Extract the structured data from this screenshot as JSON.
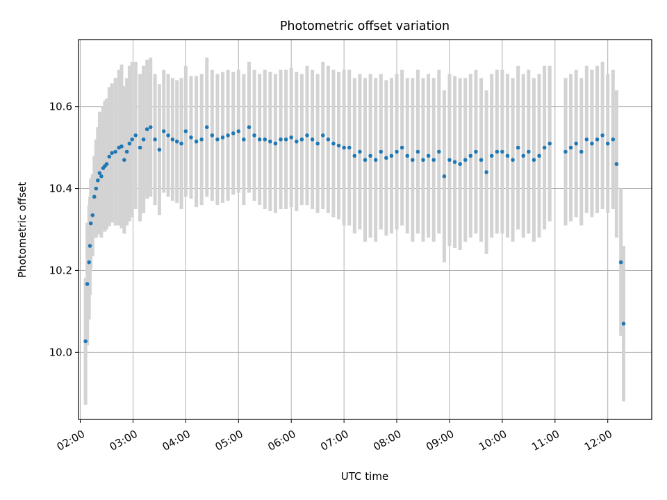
{
  "chart_data": {
    "type": "scatter",
    "title": "Photometric offset variation",
    "xlabel": "UTC time",
    "ylabel": "Photometric offset",
    "xlim": [
      "01:58",
      "12:50"
    ],
    "ylim": [
      9.836,
      10.764
    ],
    "x_ticks": [
      "02:00",
      "03:00",
      "04:00",
      "05:00",
      "06:00",
      "07:00",
      "08:00",
      "09:00",
      "10:00",
      "11:00",
      "12:00"
    ],
    "y_ticks": [
      "10.0",
      "10.2",
      "10.4",
      "10.6"
    ],
    "grid": true,
    "legend": "none",
    "colors": {
      "marker": "#1f77b4",
      "errorbar": "#d3d3d3",
      "grid": "#b0b0b0"
    },
    "series": [
      {
        "x": [
          "02:06",
          "02:08",
          "02:10",
          "02:11",
          "02:12",
          "02:14",
          "02:16",
          "02:18",
          "02:20",
          "02:22",
          "02:24",
          "02:26",
          "02:28",
          "02:30",
          "02:33",
          "02:36",
          "02:40",
          "02:44",
          "02:47",
          "02:50",
          "02:53",
          "02:56",
          "02:59",
          "03:03",
          "03:08",
          "03:12",
          "03:16",
          "03:20",
          "03:25",
          "03:30",
          "03:35",
          "03:40",
          "03:45",
          "03:50",
          "03:55",
          "04:00",
          "04:06",
          "04:12",
          "04:18",
          "04:24",
          "04:30",
          "04:36",
          "04:42",
          "04:48",
          "04:54",
          "05:00",
          "05:06",
          "05:12",
          "05:18",
          "05:24",
          "05:30",
          "05:36",
          "05:42",
          "05:48",
          "05:54",
          "06:00",
          "06:06",
          "06:12",
          "06:18",
          "06:24",
          "06:30",
          "06:36",
          "06:42",
          "06:48",
          "06:54",
          "07:00",
          "07:06",
          "07:12",
          "07:18",
          "07:24",
          "07:30",
          "07:36",
          "07:42",
          "07:48",
          "07:54",
          "08:00",
          "08:06",
          "08:12",
          "08:18",
          "08:24",
          "08:30",
          "08:36",
          "08:42",
          "08:48",
          "08:54",
          "09:00",
          "09:06",
          "09:12",
          "09:18",
          "09:24",
          "09:30",
          "09:36",
          "09:42",
          "09:48",
          "09:54",
          "10:00",
          "10:06",
          "10:12",
          "10:18",
          "10:24",
          "10:30",
          "10:36",
          "10:42",
          "10:48",
          "10:54",
          "11:12",
          "11:18",
          "11:24",
          "11:30",
          "11:36",
          "11:42",
          "11:48",
          "11:54",
          "12:00",
          "12:06",
          "12:10",
          "12:15",
          "12:18"
        ],
        "y": [
          10.027,
          10.167,
          10.22,
          10.26,
          10.315,
          10.335,
          10.38,
          10.4,
          10.42,
          10.438,
          10.43,
          10.45,
          10.455,
          10.46,
          10.478,
          10.487,
          10.49,
          10.5,
          10.503,
          10.47,
          10.49,
          10.51,
          10.52,
          10.53,
          10.5,
          10.52,
          10.545,
          10.55,
          10.52,
          10.495,
          10.54,
          10.53,
          10.52,
          10.515,
          10.51,
          10.54,
          10.525,
          10.515,
          10.52,
          10.55,
          10.53,
          10.52,
          10.525,
          10.53,
          10.535,
          10.54,
          10.52,
          10.55,
          10.53,
          10.52,
          10.52,
          10.515,
          10.51,
          10.52,
          10.52,
          10.525,
          10.515,
          10.52,
          10.53,
          10.52,
          10.51,
          10.53,
          10.52,
          10.51,
          10.505,
          10.5,
          10.5,
          10.48,
          10.49,
          10.47,
          10.48,
          10.47,
          10.49,
          10.475,
          10.48,
          10.49,
          10.5,
          10.48,
          10.47,
          10.49,
          10.47,
          10.48,
          10.47,
          10.49,
          10.43,
          10.47,
          10.465,
          10.46,
          10.47,
          10.48,
          10.49,
          10.47,
          10.44,
          10.48,
          10.49,
          10.49,
          10.48,
          10.47,
          10.5,
          10.48,
          10.49,
          10.47,
          10.48,
          10.5,
          10.51,
          10.49,
          10.5,
          10.51,
          10.49,
          10.52,
          10.51,
          10.52,
          10.53,
          10.51,
          10.52,
          10.46,
          10.22,
          10.07
        ],
        "yerr": [
          0.155,
          0.15,
          0.14,
          0.12,
          0.11,
          0.1,
          0.1,
          0.12,
          0.13,
          0.15,
          0.15,
          0.15,
          0.16,
          0.16,
          0.17,
          0.17,
          0.18,
          0.19,
          0.2,
          0.18,
          0.18,
          0.19,
          0.19,
          0.18,
          0.18,
          0.18,
          0.17,
          0.17,
          0.16,
          0.16,
          0.15,
          0.15,
          0.15,
          0.15,
          0.16,
          0.16,
          0.15,
          0.16,
          0.16,
          0.17,
          0.16,
          0.16,
          0.16,
          0.16,
          0.15,
          0.15,
          0.16,
          0.16,
          0.16,
          0.16,
          0.17,
          0.17,
          0.17,
          0.17,
          0.17,
          0.17,
          0.17,
          0.16,
          0.17,
          0.17,
          0.17,
          0.18,
          0.18,
          0.18,
          0.18,
          0.19,
          0.19,
          0.19,
          0.19,
          0.2,
          0.2,
          0.2,
          0.19,
          0.19,
          0.19,
          0.19,
          0.19,
          0.19,
          0.2,
          0.2,
          0.2,
          0.2,
          0.2,
          0.2,
          0.21,
          0.21,
          0.21,
          0.21,
          0.2,
          0.2,
          0.2,
          0.2,
          0.2,
          0.2,
          0.2,
          0.2,
          0.2,
          0.2,
          0.2,
          0.2,
          0.2,
          0.2,
          0.2,
          0.2,
          0.19,
          0.18,
          0.18,
          0.18,
          0.18,
          0.18,
          0.18,
          0.18,
          0.18,
          0.17,
          0.17,
          0.18,
          0.18,
          0.19
        ]
      }
    ]
  }
}
